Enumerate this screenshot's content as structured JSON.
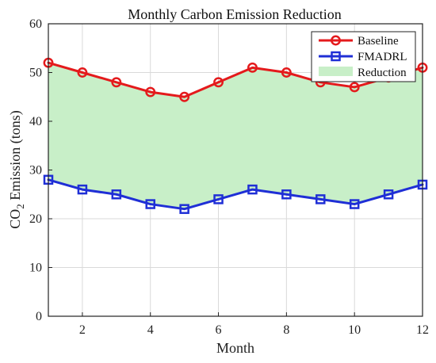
{
  "chart_data": {
    "type": "line",
    "title": "Monthly Carbon Emission Reduction",
    "xlabel": "Month",
    "ylabel": {
      "prefix": "CO",
      "subscript": "2",
      "suffix": " Emission (tons)"
    },
    "x": [
      1,
      2,
      3,
      4,
      5,
      6,
      7,
      8,
      9,
      10,
      11,
      12
    ],
    "xlim": [
      1,
      12
    ],
    "ylim": [
      0,
      60
    ],
    "xticks": [
      2,
      4,
      6,
      8,
      10,
      12
    ],
    "yticks": [
      0,
      10,
      20,
      30,
      40,
      50,
      60
    ],
    "grid": true,
    "legend_location": "top-right",
    "series": [
      {
        "name": "Baseline",
        "values": [
          52,
          50,
          48,
          46,
          45,
          48,
          51,
          50,
          48,
          47,
          49,
          51
        ],
        "color": "#e41a1c",
        "marker": "circle"
      },
      {
        "name": "FMADRL",
        "values": [
          28,
          26,
          25,
          23,
          22,
          24,
          26,
          25,
          24,
          23,
          25,
          27
        ],
        "color": "#1f2fd6",
        "marker": "square"
      }
    ],
    "fill_between": {
      "name": "Reduction",
      "upper_series": "Baseline",
      "lower_series": "FMADRL",
      "color": "#c8efc8"
    }
  }
}
